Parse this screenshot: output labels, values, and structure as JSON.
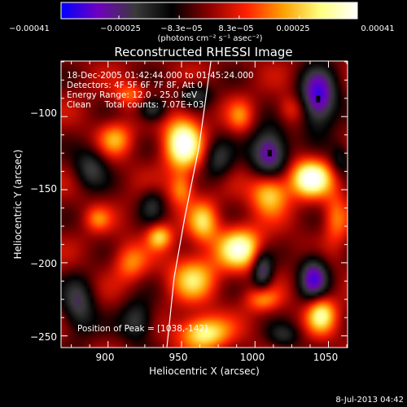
{
  "colorbar": {
    "vmin": -0.00041,
    "vmax": 0.00041,
    "tick_labels": [
      "−0.00041",
      "−0.00025",
      "−8.3e−05",
      "8.3e−05",
      "0.00025",
      "0.00041"
    ],
    "units_label": "(photons cm⁻² s⁻¹ asec⁻²)",
    "stops": [
      "#0000ff",
      "#7000c0",
      "#3a3a3a",
      "#000000",
      "#8a0000",
      "#ff2000",
      "#ffa000",
      "#ffff80",
      "#ffffff"
    ]
  },
  "chart_data": {
    "type": "heatmap",
    "title": "Reconstructed RHESSI Image",
    "xlabel": "Heliocentric X (arcsec)",
    "ylabel": "Heliocentric Y (arcsec)",
    "xlim": [
      868,
      1063
    ],
    "ylim": [
      -258,
      -62
    ],
    "x_ticks": [
      900,
      950,
      1000,
      1050
    ],
    "y_ticks": [
      -250,
      -200,
      -150,
      -100
    ],
    "x_tick_labels": [
      "900",
      "950",
      "1000",
      "1050"
    ],
    "y_tick_labels": [
      "−250",
      "−200",
      "−150",
      "−100"
    ],
    "sources": [
      {
        "x": 951,
        "y": -118,
        "amp": 0.00041,
        "sx": 9,
        "sy": 13
      },
      {
        "x": 1038,
        "y": -142,
        "amp": 0.00041,
        "sx": 10,
        "sy": 9
      },
      {
        "x": 990,
        "y": -190,
        "amp": 0.00036,
        "sx": 11,
        "sy": 10
      },
      {
        "x": 1010,
        "y": -152,
        "amp": 0.0003,
        "sx": 9,
        "sy": 10
      },
      {
        "x": 1045,
        "y": -235,
        "amp": 0.00032,
        "sx": 7,
        "sy": 9
      },
      {
        "x": 965,
        "y": -248,
        "amp": 0.00034,
        "sx": 12,
        "sy": 8
      },
      {
        "x": 958,
        "y": -210,
        "amp": 0.00026,
        "sx": 11,
        "sy": 11
      },
      {
        "x": 965,
        "y": -172,
        "amp": 0.00025,
        "sx": 7,
        "sy": 10
      },
      {
        "x": 950,
        "y": -150,
        "amp": 0.0002,
        "sx": 6,
        "sy": 8
      },
      {
        "x": 935,
        "y": -182,
        "amp": 0.00027,
        "sx": 6,
        "sy": 6
      },
      {
        "x": 905,
        "y": -115,
        "amp": 0.0002,
        "sx": 8,
        "sy": 8
      },
      {
        "x": 915,
        "y": -200,
        "amp": 0.00018,
        "sx": 8,
        "sy": 9
      },
      {
        "x": 893,
        "y": -170,
        "amp": 0.00015,
        "sx": 6,
        "sy": 6
      },
      {
        "x": 915,
        "y": -85,
        "amp": 0.00016,
        "sx": 8,
        "sy": 6
      },
      {
        "x": 1005,
        "y": -225,
        "amp": 0.0002,
        "sx": 8,
        "sy": 6
      },
      {
        "x": 1025,
        "y": -95,
        "amp": 0.00014,
        "sx": 7,
        "sy": 7
      },
      {
        "x": 1055,
        "y": -170,
        "amp": 0.00018,
        "sx": 6,
        "sy": 12
      },
      {
        "x": 990,
        "y": -100,
        "amp": 0.00015,
        "sx": 6,
        "sy": 8
      },
      {
        "x": 1010,
        "y": -125,
        "amp": -0.00035,
        "sx": 9,
        "sy": 12
      },
      {
        "x": 1043,
        "y": -88,
        "amp": -0.00037,
        "sx": 9,
        "sy": 14
      },
      {
        "x": 1040,
        "y": -210,
        "amp": -0.00032,
        "sx": 7,
        "sy": 11
      },
      {
        "x": 1005,
        "y": -205,
        "amp": -0.00028,
        "sx": 5,
        "sy": 10
      },
      {
        "x": 930,
        "y": -95,
        "amp": -0.00025,
        "sx": 7,
        "sy": 6
      },
      {
        "x": 960,
        "y": -85,
        "amp": -0.00018,
        "sx": 8,
        "sy": 6
      },
      {
        "x": 888,
        "y": -135,
        "amp": -0.0002,
        "sx": 8,
        "sy": 10
      },
      {
        "x": 880,
        "y": -230,
        "amp": -0.00022,
        "sx": 8,
        "sy": 14
      },
      {
        "x": 920,
        "y": -240,
        "amp": -0.00022,
        "sx": 8,
        "sy": 10
      },
      {
        "x": 975,
        "y": -130,
        "amp": -0.00018,
        "sx": 7,
        "sy": 10
      },
      {
        "x": 1020,
        "y": -250,
        "amp": -0.00015,
        "sx": 8,
        "sy": 6
      },
      {
        "x": 930,
        "y": -160,
        "amp": -0.00015,
        "sx": 6,
        "sy": 8
      },
      {
        "x": 1058,
        "y": -130,
        "amp": -0.00015,
        "sx": 5,
        "sy": 8
      }
    ],
    "peak_markers": [
      {
        "x": 1010,
        "y": -125
      },
      {
        "x": 1043,
        "y": -88
      }
    ],
    "limb": [
      {
        "x": 970,
        "y": -62
      },
      {
        "x": 962,
        "y": -120
      },
      {
        "x": 952,
        "y": -170
      },
      {
        "x": 945,
        "y": -210
      },
      {
        "x": 940,
        "y": -258
      }
    ],
    "annotations": [
      "18-Dec-2005 01:42:44.000 to 01:45:24.000",
      "Detectors: 4F 5F 6F 7F 8F, Att 0",
      "Energy Range: 12.0 - 25.0 keV",
      "Clean     Total counts: 7.07E+03",
      "Position of Peak = [1038,-142]"
    ]
  },
  "timestamp": "8-Jul-2013 04:42"
}
